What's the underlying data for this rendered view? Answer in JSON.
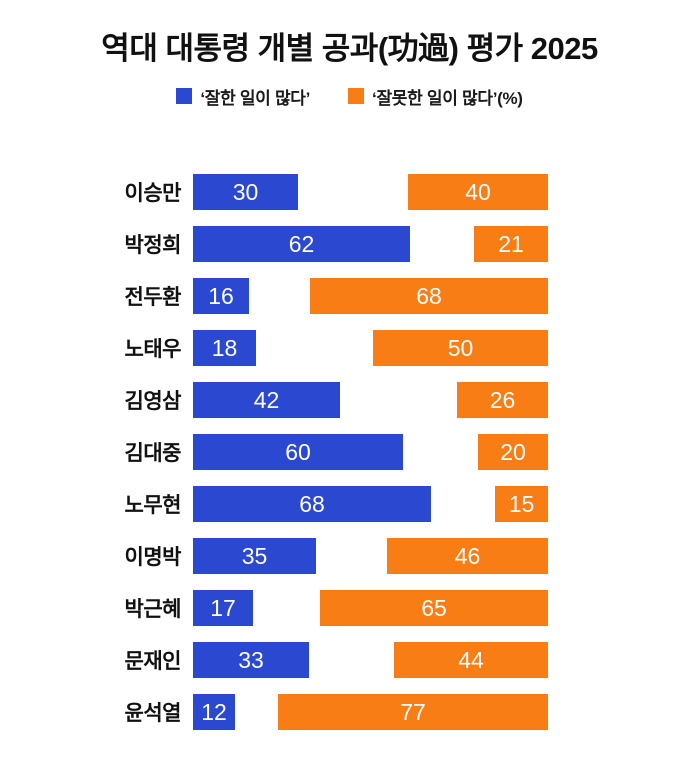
{
  "title": "역대 대통령 개별 공과(功過) 평가 2025",
  "legend": {
    "items": [
      {
        "label": "‘잘한 일이 많다’",
        "color": "#2b48d0"
      },
      {
        "label": "‘잘못한 일이 많다’(%)",
        "color": "#f97d15"
      }
    ]
  },
  "chart_data": {
    "type": "bar",
    "orientation": "horizontal-paired",
    "title": "역대 대통령 개별 공과(功過) 평가 2025",
    "categories": [
      "이승만",
      "박정희",
      "전두환",
      "노태우",
      "김영삼",
      "김대중",
      "노무현",
      "이명박",
      "박근혜",
      "문재인",
      "윤석열"
    ],
    "series": [
      {
        "name": "‘잘한 일이 많다’",
        "color": "#2b48d0",
        "align": "left",
        "values": [
          30,
          62,
          16,
          18,
          42,
          60,
          68,
          35,
          17,
          33,
          12
        ]
      },
      {
        "name": "‘잘못한 일이 많다’(%)",
        "color": "#f97d15",
        "align": "right",
        "values": [
          40,
          21,
          68,
          50,
          26,
          20,
          15,
          46,
          65,
          44,
          77
        ]
      }
    ],
    "unit": "%",
    "xlim": [
      0,
      100
    ],
    "grid": false,
    "legend_position": "top",
    "value_labels": "inside",
    "value_label_color": "#ffffff"
  }
}
